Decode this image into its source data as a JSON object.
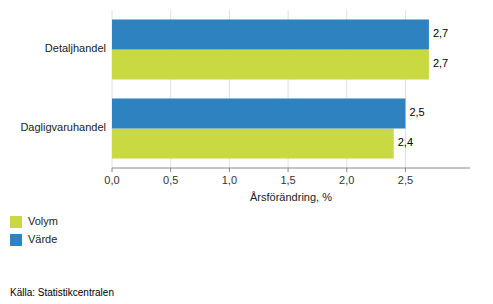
{
  "chart_data": {
    "type": "bar",
    "orientation": "horizontal",
    "categories": [
      "Dagligvaruhandel",
      "Detaljhandel"
    ],
    "series": [
      {
        "name": "Volym",
        "color": "#c8d942",
        "values": [
          2.4,
          2.7
        ],
        "value_labels": [
          "2,4",
          "2,7"
        ]
      },
      {
        "name": "Värde",
        "color": "#2f82c0",
        "values": [
          2.5,
          2.7
        ],
        "value_labels": [
          "2,5",
          "2,7"
        ]
      }
    ],
    "x_label": "Årsförändring, %",
    "xlim": [
      0,
      3.05
    ],
    "xticks": [
      {
        "value": 0.0,
        "label": "0,0"
      },
      {
        "value": 0.5,
        "label": "0,5"
      },
      {
        "value": 1.0,
        "label": "1,0"
      },
      {
        "value": 1.5,
        "label": "1,5"
      },
      {
        "value": 2.0,
        "label": "2,0"
      },
      {
        "value": 2.5,
        "label": "2,5"
      }
    ],
    "grid": true,
    "legend": "bottom",
    "data_labels": true,
    "source": "Källa: Statistikcentralen"
  }
}
